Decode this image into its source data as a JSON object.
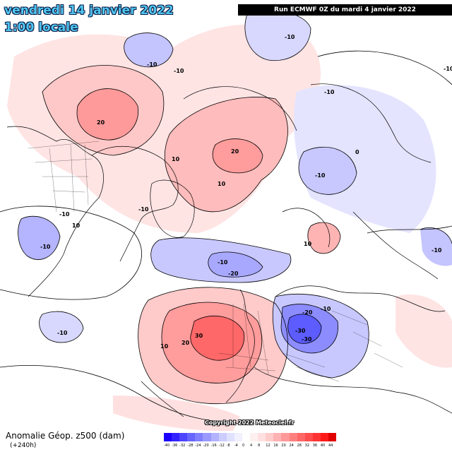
{
  "header": {
    "date": "vendredi 14 janvier 2022",
    "time": "1:00 locale",
    "run": "Run ECMWF 0Z du mardi 4 janvier 2022"
  },
  "footer": {
    "title": "Anomalie Géop. z500 (dam)",
    "step": "(+240h)",
    "copyright": "Copyright 2022 Meteociel.fr"
  },
  "legend": {
    "ticks": [
      "-40",
      "-36",
      "-32",
      "-28",
      "-24",
      "-20",
      "-16",
      "-12",
      "-8",
      "-4",
      "0",
      "4",
      "8",
      "12",
      "16",
      "20",
      "24",
      "28",
      "32",
      "36",
      "40",
      "44"
    ],
    "colors": [
      "#1a00ff",
      "#3322ff",
      "#4c44ff",
      "#6666ff",
      "#7f7fff",
      "#9999ff",
      "#b2b2ff",
      "#ccccff",
      "#e0e0ff",
      "#f0f0ff",
      "#ffffff",
      "#fff0f0",
      "#ffe0e0",
      "#ffcccc",
      "#ffb2b2",
      "#ff9999",
      "#ff7f7f",
      "#ff6666",
      "#ff4c4c",
      "#ff3333",
      "#ff1a1a",
      "#e00000"
    ]
  },
  "map_labels": {
    "alaska_20": "20",
    "siberia_20": "20",
    "north_pacific_10": "-10",
    "north_pacific_10b": "-10",
    "arctic_10": "10",
    "greenland_10": "10",
    "canada_10": "10",
    "canada_m10": "-10",
    "hudson_m10": "-10",
    "westcoast_m10": "-10",
    "atlantic_m10": "-10",
    "atlantic_m20": "-20",
    "europe_30": "30",
    "europe_20": "20",
    "europe_10": "10",
    "eurasia_m20": "-20",
    "eurasia_m30": "-30",
    "eurasia_m30b": "-30",
    "eurasia_m10": "-10",
    "asia_10": "10",
    "asia_m10": "-10",
    "asia_m10b": "-10",
    "asia_0": "0",
    "far_m10": "-10",
    "far_m10b": "-10",
    "sw_m10": "-10",
    "w_m10": "-10"
  }
}
